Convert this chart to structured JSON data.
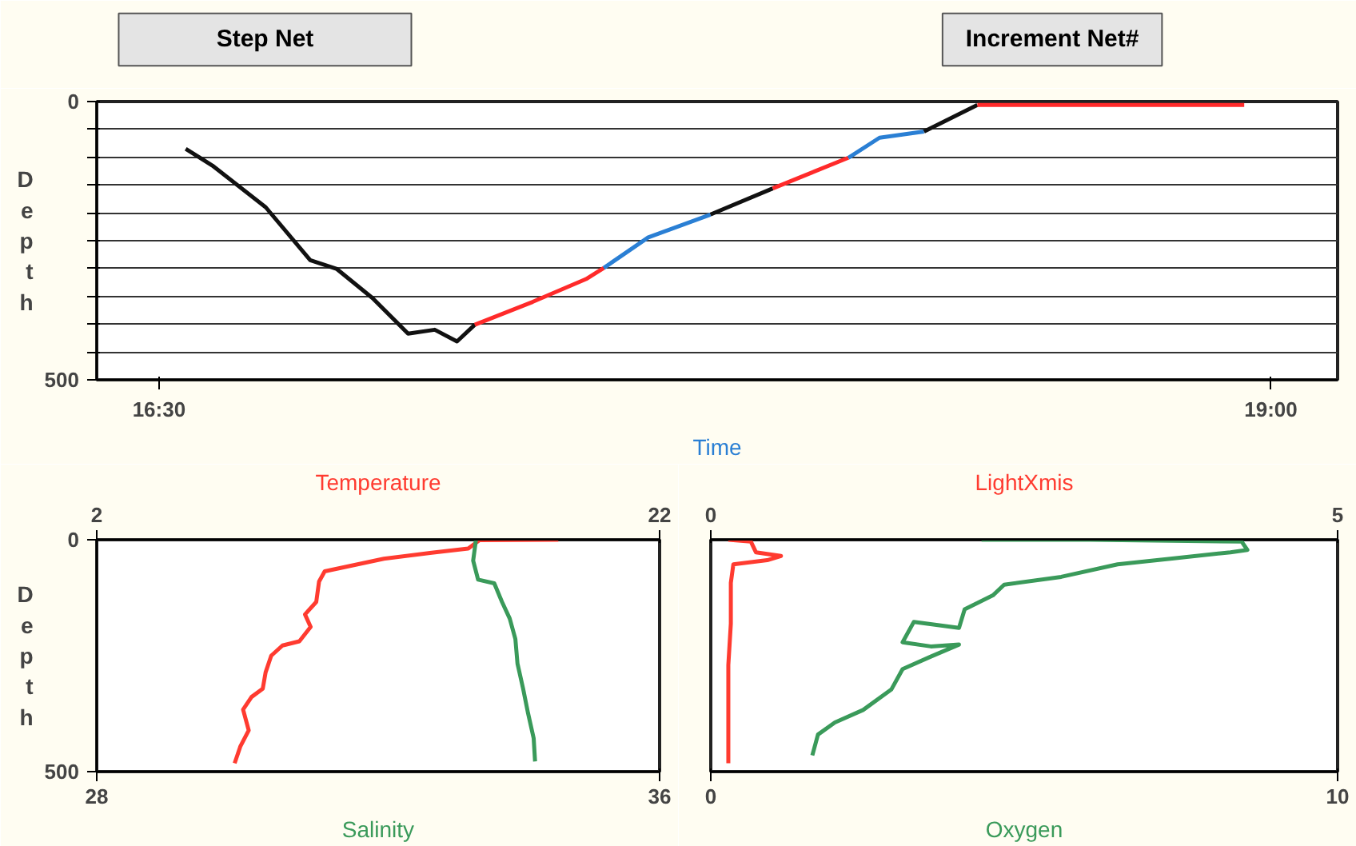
{
  "chart_data": [
    {
      "type": "other",
      "annotations": [
        "Step Net",
        "Increment Net#"
      ]
    },
    {
      "type": "line",
      "ylabel": "Depth",
      "xlabel": "Time",
      "xlim": [
        16.36,
        19.15
      ],
      "xticks": [
        {
          "value": 16.5,
          "label": "16:30"
        },
        {
          "value": 19,
          "label": "19:00"
        }
      ],
      "ylim": [
        500,
        0
      ],
      "yticks": [
        0,
        {
          "value": 50,
          "label": null
        },
        {
          "value": 100,
          "label": null
        },
        {
          "value": 150,
          "label": null
        },
        {
          "value": 200,
          "label": null
        },
        {
          "value": 250,
          "label": null
        },
        {
          "value": 300,
          "label": null
        },
        {
          "value": 350,
          "label": null
        },
        {
          "value": 400,
          "label": null
        },
        {
          "value": 450,
          "label": null
        },
        500
      ],
      "grid": "y",
      "series": [
        {
          "color": "#111111",
          "x": [
            16.56,
            16.62,
            16.74,
            16.84,
            16.9,
            16.98,
            17.06,
            17.12,
            17.17,
            17.21
          ],
          "values": [
            85,
            115,
            190,
            285,
            301,
            353,
            417,
            410,
            431,
            401
          ]
        },
        {
          "color": "#ff2a2a",
          "x": [
            17.21,
            17.34,
            17.46,
            17.5
          ],
          "values": [
            401,
            360,
            319,
            299
          ]
        },
        {
          "color": "#2a7fd4",
          "x": [
            17.5,
            17.6,
            17.74
          ],
          "values": [
            299,
            244,
            203
          ]
        },
        {
          "color": "#111111",
          "x": [
            17.74,
            17.88
          ],
          "values": [
            203,
            156
          ]
        },
        {
          "color": "#ff2a2a",
          "x": [
            17.88,
            18.05
          ],
          "values": [
            156,
            101
          ]
        },
        {
          "color": "#2a7fd4",
          "x": [
            18.05,
            18.12,
            18.22
          ],
          "values": [
            101,
            65,
            54
          ]
        },
        {
          "color": "#111111",
          "x": [
            18.22,
            18.34
          ],
          "values": [
            54,
            6
          ]
        },
        {
          "color": "#ff2a2a",
          "x": [
            18.34,
            18.94
          ],
          "values": [
            6,
            6
          ]
        }
      ]
    },
    {
      "type": "line",
      "ylabel": "Depth",
      "xlabel": "Salinity",
      "x2label": "Temperature",
      "xlim": [
        28,
        36
      ],
      "xticks": [
        28,
        36
      ],
      "x2lim": [
        2,
        22
      ],
      "x2ticks": [
        2,
        22
      ],
      "ylim": [
        500,
        0
      ],
      "yticks": [
        0,
        500
      ],
      "grid": false,
      "series": [
        {
          "color": "#ff3b30",
          "axis": "x2",
          "x": [
            18.4,
            15.6,
            15.2,
            13.9,
            12.2,
            10.1,
            9.9,
            9.8,
            9.4,
            9.6,
            9.2,
            8.6,
            8.2,
            8.0,
            7.9,
            7.5,
            7.2,
            7.4,
            7.1,
            6.9
          ],
          "values": [
            0,
            1,
            19,
            28,
            41,
            68,
            90,
            134,
            161,
            188,
            219,
            228,
            250,
            286,
            321,
            339,
            366,
            411,
            446,
            482
          ]
        },
        {
          "color": "#3a9a5a",
          "x": [
            33.39,
            33.35,
            33.42,
            33.65,
            33.76,
            33.87,
            33.95,
            33.98,
            34.06,
            34.13,
            34.21,
            34.23
          ],
          "values": [
            0,
            45,
            86,
            94,
            134,
            170,
            214,
            267,
            321,
            374,
            428,
            478
          ]
        }
      ]
    },
    {
      "type": "line",
      "xlabel": "Oxygen",
      "x2label": "LightXmis",
      "xlim": [
        0,
        10
      ],
      "xticks": [
        0,
        10
      ],
      "x2lim": [
        0,
        5
      ],
      "x2ticks": [
        0,
        5
      ],
      "ylim": [
        500,
        0
      ],
      "grid": false,
      "tick_labels": "x",
      "series": [
        {
          "color": "#ff3b30",
          "axis": "x2",
          "x": [
            0.14,
            0.32,
            0.36,
            0.56,
            0.45,
            0.18,
            0.16,
            0.16,
            0.14,
            0.14,
            0.14,
            0.14
          ],
          "values": [
            0,
            4,
            27,
            35,
            44,
            53,
            93,
            181,
            270,
            358,
            447,
            482
          ]
        },
        {
          "color": "#3a9a5a",
          "x": [
            4.32,
            6.04,
            8.47,
            8.56,
            8.29,
            7.39,
            6.49,
            5.59,
            4.68,
            4.5,
            4.05,
            3.96,
            3.24,
            3.06,
            3.51,
            3.96,
            3.51,
            3.06,
            2.88,
            2.43,
            1.98,
            1.71,
            1.62
          ],
          "values": [
            0,
            0,
            4,
            22,
            27,
            40,
            53,
            80,
            97,
            120,
            150,
            190,
            177,
            221,
            230,
            226,
            252,
            279,
            323,
            367,
            394,
            420,
            465
          ]
        }
      ]
    }
  ]
}
